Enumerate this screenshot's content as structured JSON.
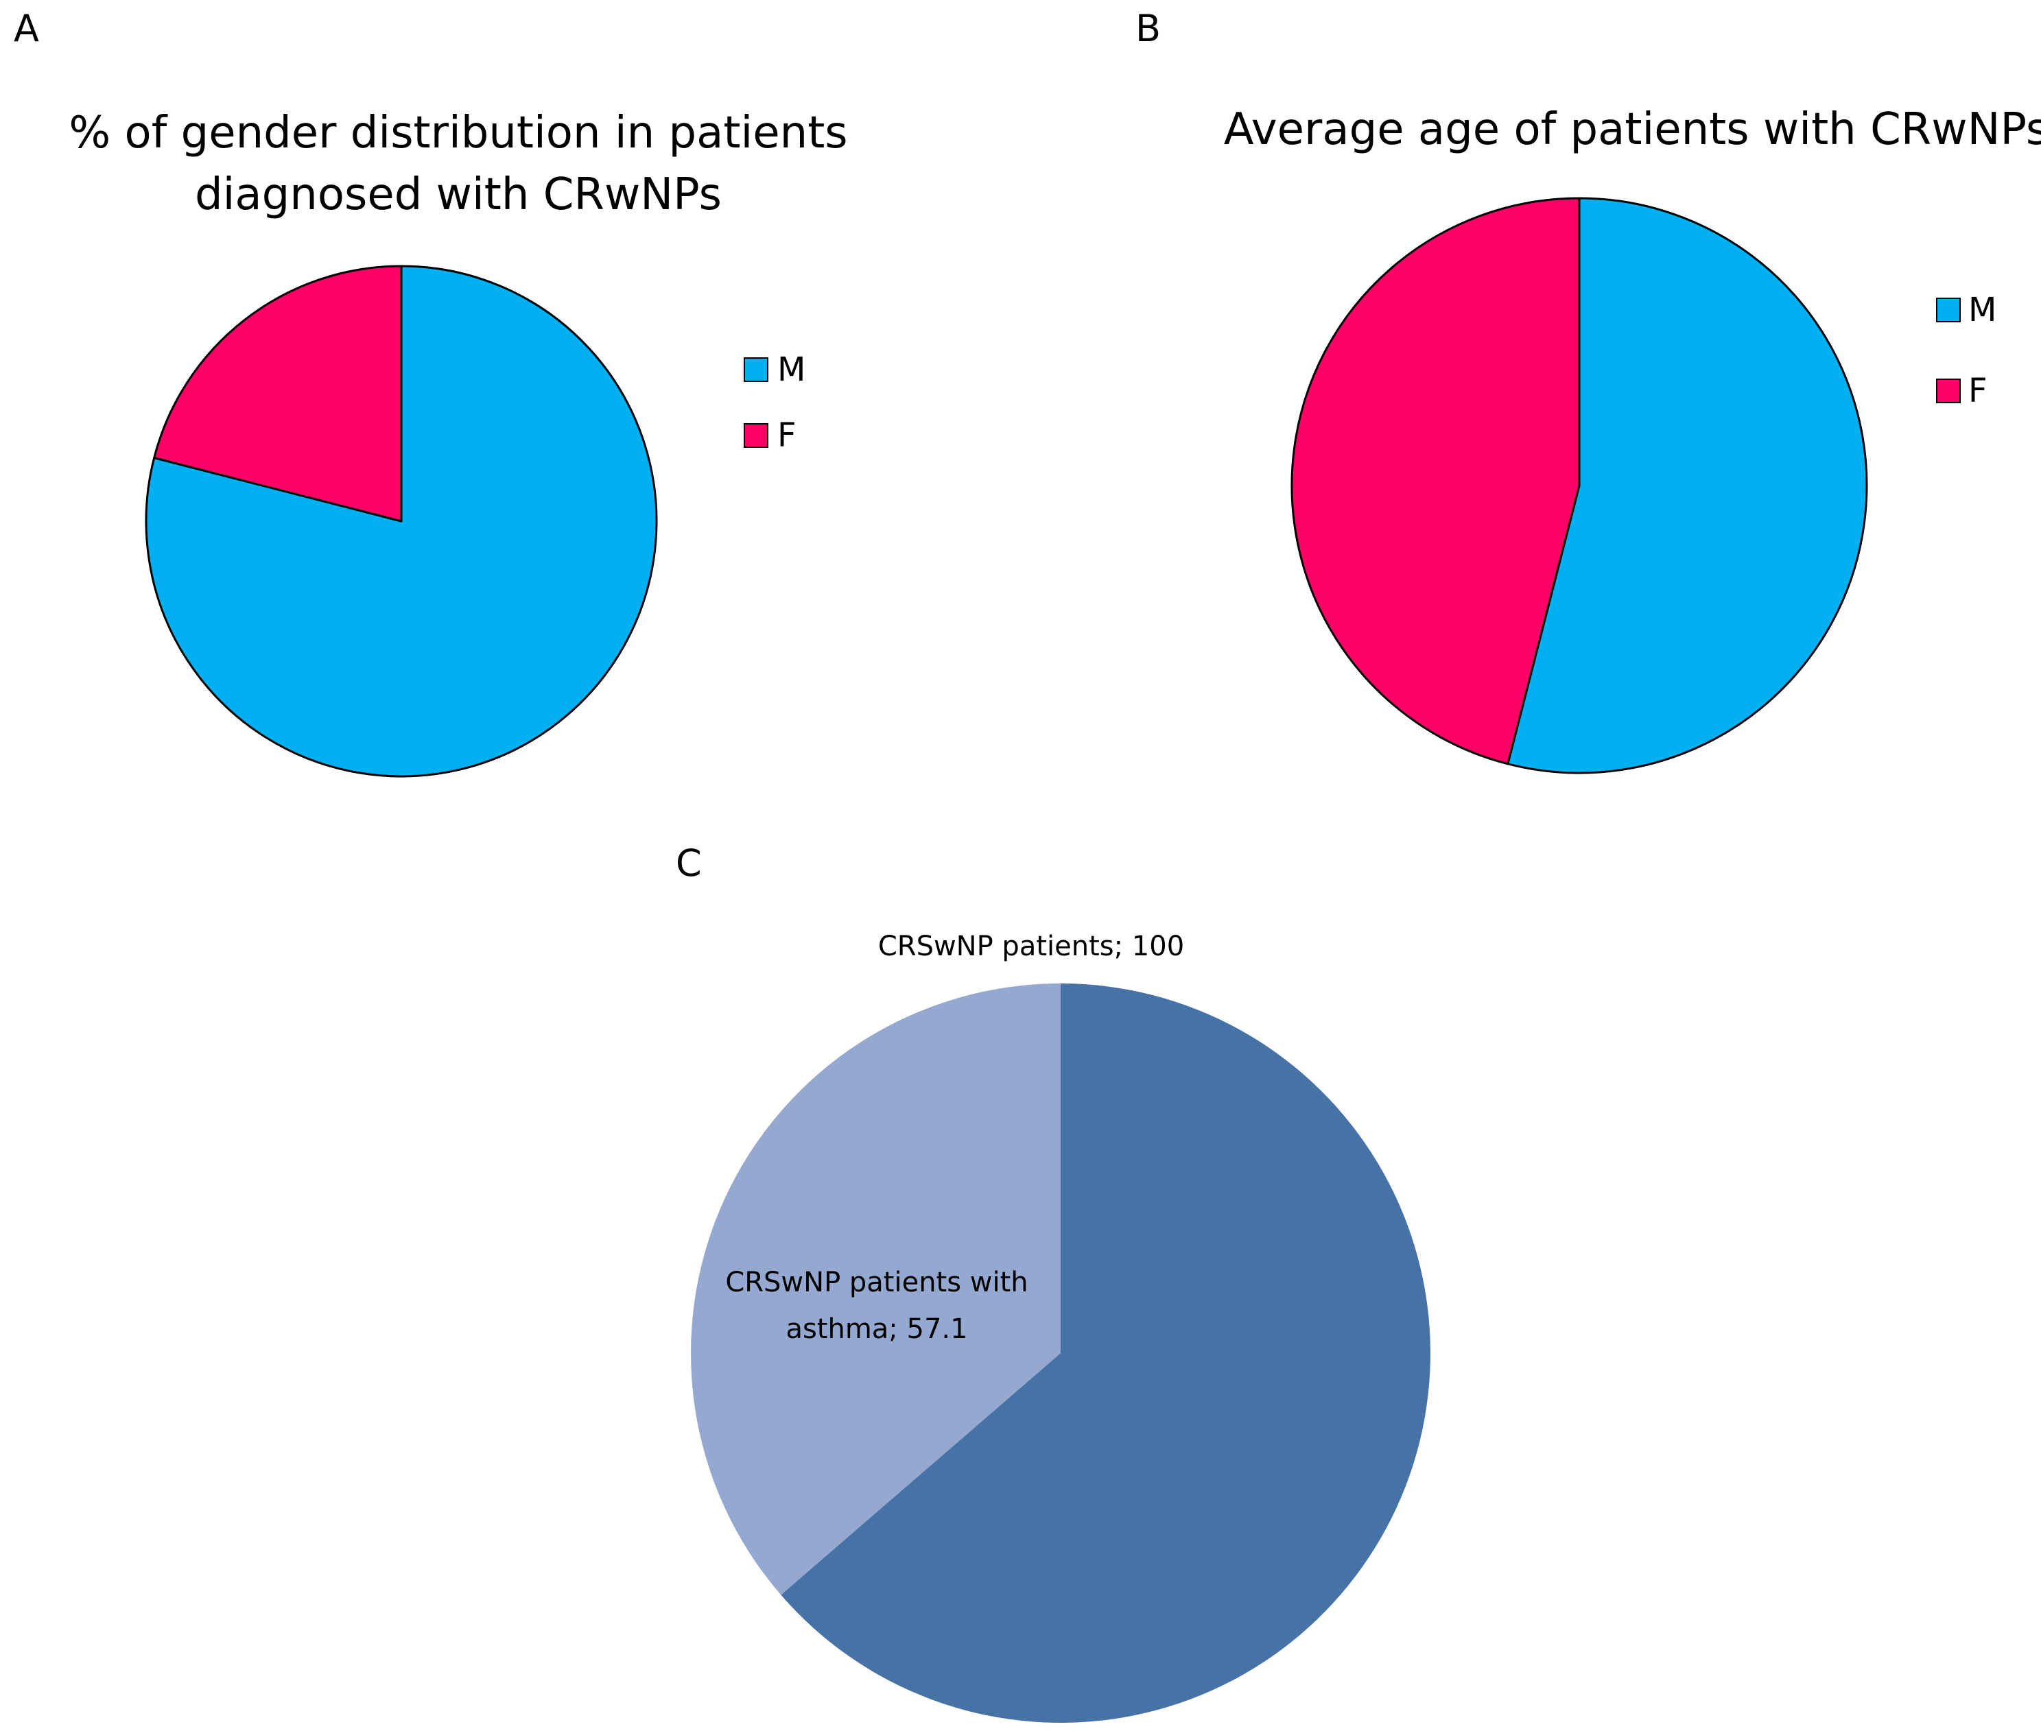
{
  "figure": {
    "panel_letters": [
      "A",
      "B",
      "C"
    ]
  },
  "chart_data": [
    {
      "panel": "A",
      "type": "pie",
      "title_lines": [
        "% of gender distribution in patients",
        "diagnosed with CRwNPs"
      ],
      "start_angle_deg": 0,
      "slices": [
        {
          "label": "M",
          "value": 79,
          "color": "#00B0F0"
        },
        {
          "label": "F",
          "value": 21,
          "color": "#FF0066"
        }
      ],
      "legend": {
        "position": "right",
        "entries": [
          "M",
          "F"
        ]
      },
      "slice_outline": "#000000"
    },
    {
      "panel": "B",
      "type": "pie",
      "title_lines": [
        "Average age of patients with CRwNPs"
      ],
      "start_angle_deg": 0,
      "slices": [
        {
          "label": "M",
          "value": 54,
          "color": "#00B0F0"
        },
        {
          "label": "F",
          "value": 46,
          "color": "#FF0066"
        }
      ],
      "legend": {
        "position": "right",
        "entries": [
          "M",
          "F"
        ]
      },
      "slice_outline": "#000000"
    },
    {
      "panel": "C",
      "type": "pie",
      "title_lines": [],
      "start_angle_deg": 0,
      "slices": [
        {
          "label": "CRSwNP patients",
          "value": 100,
          "data_label_lines": [
            "CRSwNP patients; 100"
          ],
          "color": "#4672A6"
        },
        {
          "label": "CRSwNP patients with asthma",
          "value": 57.1,
          "data_label_lines": [
            "CRSwNP patients with",
            "asthma; 57.1"
          ],
          "color": "#95A9D0"
        }
      ],
      "legend": null,
      "slice_outline": null
    }
  ]
}
